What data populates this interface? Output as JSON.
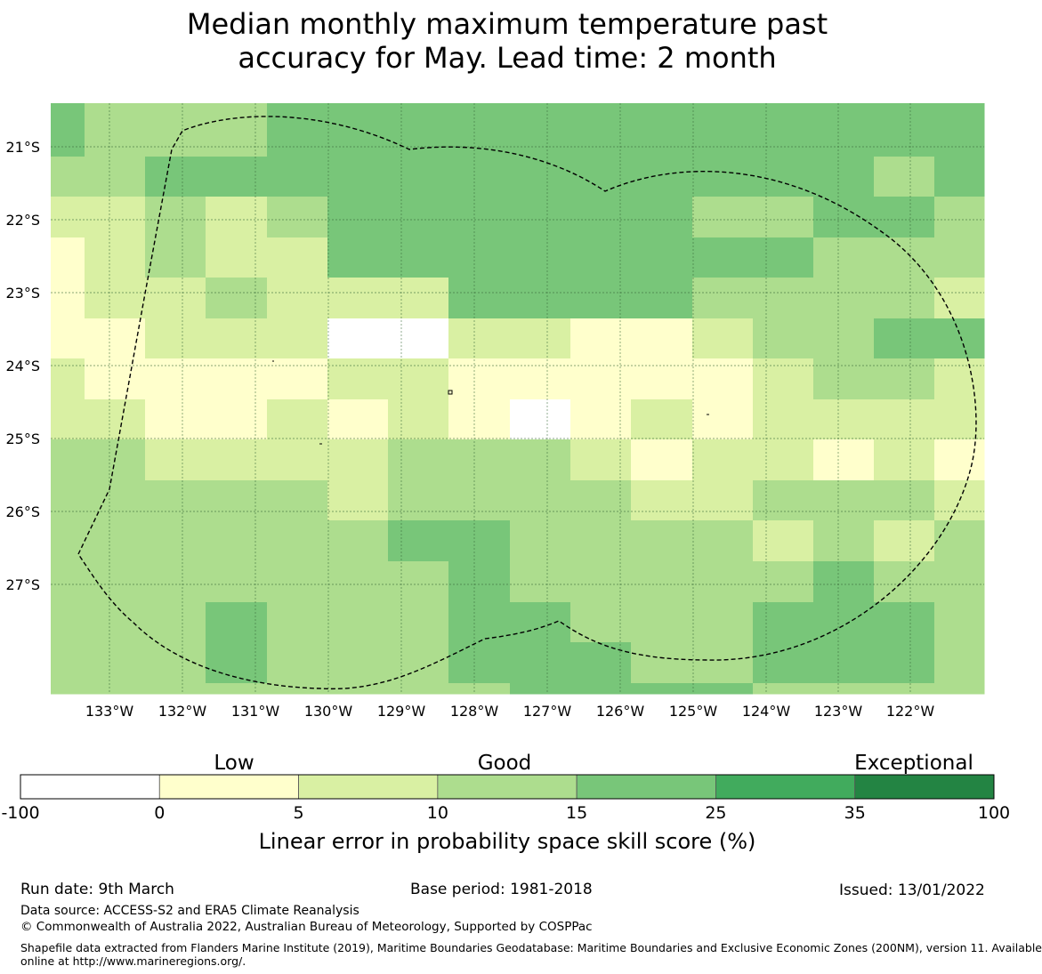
{
  "title": {
    "line1": "Median monthly maximum temperature past",
    "line2": "accuracy for May. Lead time: 2 month"
  },
  "map": {
    "lat_labels": [
      "21°S",
      "22°S",
      "23°S",
      "24°S",
      "25°S",
      "26°S",
      "27°S"
    ],
    "lon_labels": [
      "133°W",
      "132°W",
      "131°W",
      "130°W",
      "129°W",
      "128°W",
      "127°W",
      "126°W",
      "125°W",
      "124°W",
      "123°W",
      "122°W"
    ],
    "grid_values": [
      [
        4,
        3,
        3,
        3,
        4,
        4,
        4,
        4,
        4,
        4,
        4,
        4,
        4,
        4,
        4,
        4
      ],
      [
        3,
        3,
        4,
        4,
        4,
        4,
        4,
        4,
        4,
        4,
        4,
        4,
        4,
        4,
        3,
        4
      ],
      [
        2,
        2,
        3,
        2,
        3,
        4,
        4,
        4,
        4,
        4,
        4,
        3,
        3,
        4,
        4,
        3
      ],
      [
        1,
        2,
        3,
        2,
        2,
        4,
        4,
        4,
        4,
        4,
        4,
        4,
        4,
        3,
        3,
        3
      ],
      [
        1,
        2,
        2,
        3,
        2,
        2,
        2,
        4,
        4,
        4,
        4,
        3,
        3,
        3,
        3,
        2
      ],
      [
        1,
        1,
        2,
        2,
        2,
        0,
        0,
        2,
        2,
        1,
        1,
        2,
        3,
        3,
        4,
        4
      ],
      [
        2,
        1,
        1,
        1,
        1,
        2,
        2,
        1,
        1,
        1,
        1,
        1,
        2,
        3,
        3,
        2
      ],
      [
        2,
        2,
        1,
        1,
        2,
        1,
        2,
        1,
        0,
        1,
        2,
        1,
        2,
        2,
        2,
        2
      ],
      [
        3,
        3,
        2,
        2,
        2,
        2,
        3,
        3,
        3,
        2,
        1,
        2,
        2,
        1,
        2,
        1
      ],
      [
        3,
        3,
        3,
        3,
        3,
        2,
        3,
        3,
        3,
        3,
        2,
        2,
        3,
        3,
        3,
        2
      ],
      [
        3,
        3,
        3,
        3,
        3,
        3,
        4,
        4,
        3,
        3,
        3,
        3,
        2,
        3,
        2,
        3
      ],
      [
        3,
        3,
        3,
        3,
        3,
        3,
        3,
        4,
        3,
        3,
        3,
        3,
        3,
        4,
        3,
        3
      ],
      [
        3,
        3,
        3,
        4,
        3,
        3,
        3,
        4,
        4,
        3,
        3,
        3,
        4,
        4,
        4,
        3
      ],
      [
        3,
        3,
        3,
        4,
        3,
        3,
        3,
        4,
        4,
        4,
        3,
        3,
        4,
        4,
        4,
        3
      ],
      [
        3,
        3,
        3,
        3,
        3,
        3,
        3,
        3,
        4,
        4,
        4,
        4,
        3,
        3,
        3,
        3
      ]
    ]
  },
  "legend": {
    "categories": [
      "Low",
      "Good",
      "Exceptional"
    ],
    "ticks": [
      "-100",
      "0",
      "5",
      "10",
      "15",
      "25",
      "35",
      "100"
    ],
    "colors": [
      "#ffffff",
      "#ffffcc",
      "#d9f0a3",
      "#addd8e",
      "#78c679",
      "#41ab5d",
      "#238443"
    ],
    "label": "Linear error in probability space skill score (%)"
  },
  "footer": {
    "run_date": "Run date: 9th March",
    "base_period": "Base period: 1981-2018",
    "issued": "Issued: 13/01/2022",
    "data_source": "Data source: ACCESS-S2 and ERA5 Climate Reanalysis",
    "copyright": "© Commonwealth of Australia 2022, Australian Bureau of Meteorology, Supported by COSPPac",
    "shapefile_1": "Shapefile data extracted from Flanders Marine Institute (2019), Maritime Boundaries Geodatabase: Maritime Boundaries and Exclusive Economic Zones (200NM), version 11. Available",
    "shapefile_2": "online at http://www.marineregions.org/."
  }
}
